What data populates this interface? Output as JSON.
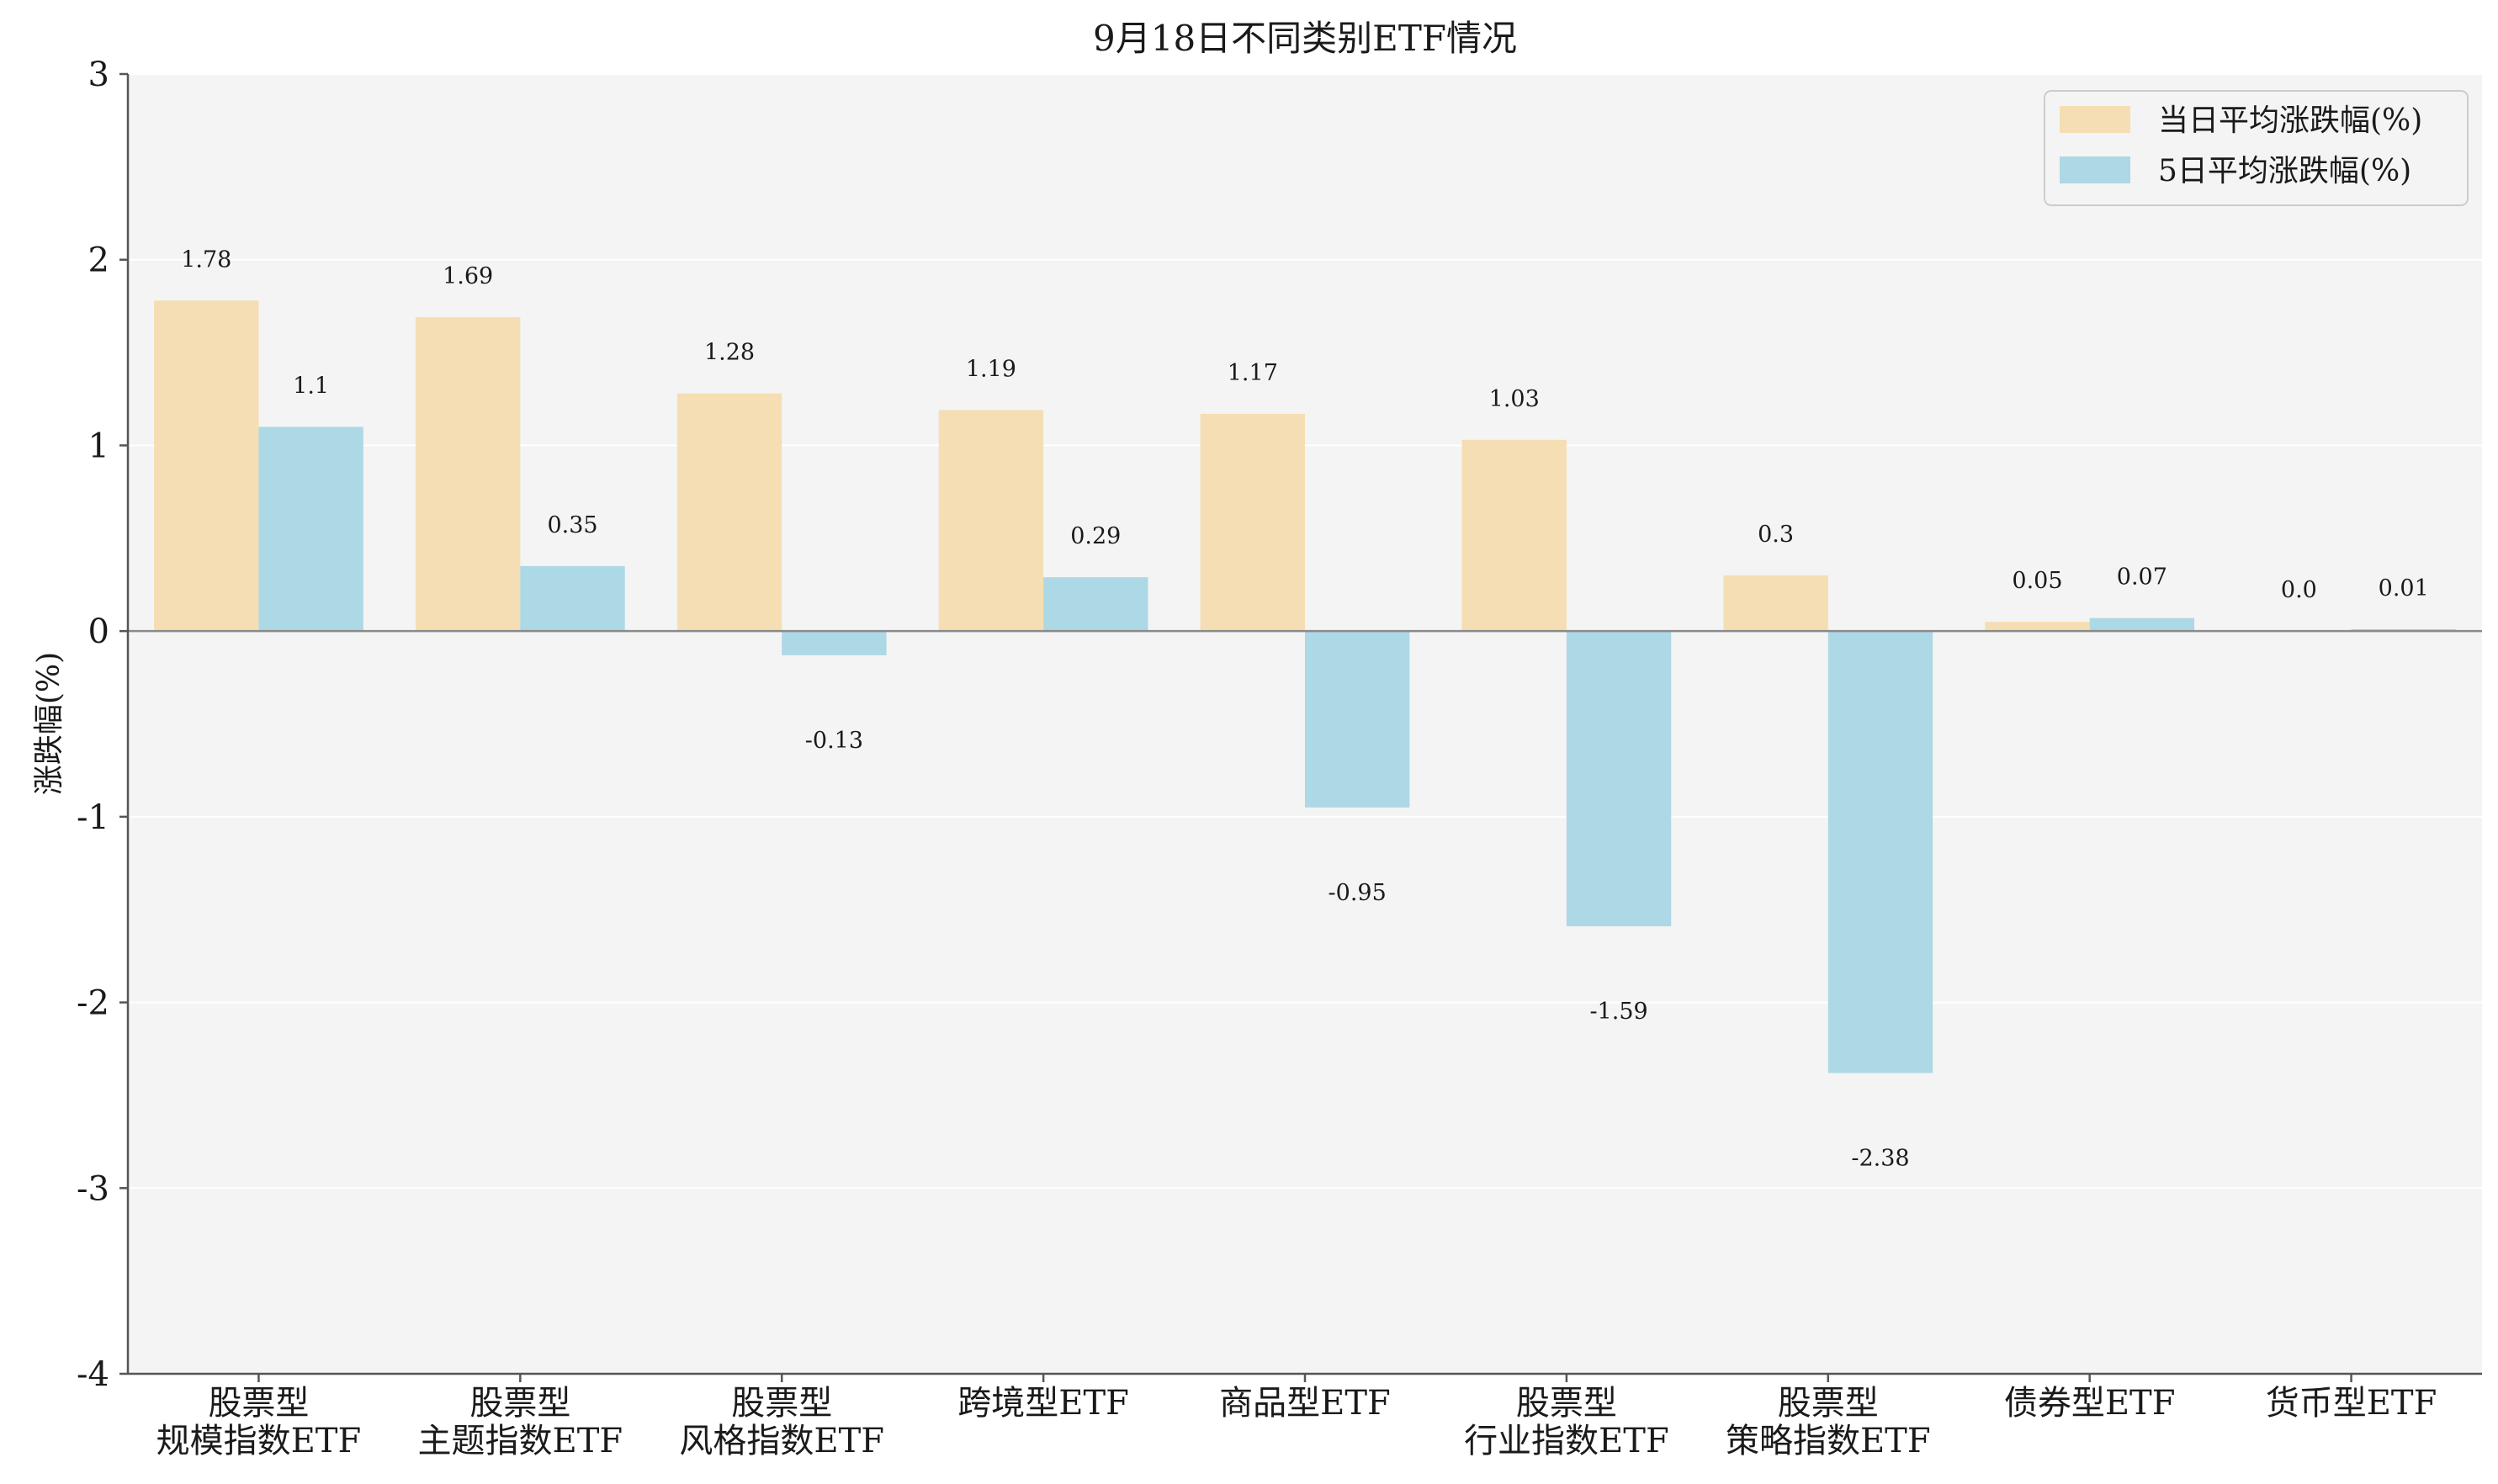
{
  "chart_data": {
    "type": "bar",
    "title": "9月18日不同类别ETF情况",
    "ylabel": "涨跌幅(%)",
    "xlabel": "",
    "ylim": [
      -4,
      3
    ],
    "yticks": [
      3,
      2,
      1,
      0,
      -1,
      -2,
      -3,
      -4
    ],
    "grid": true,
    "legend_position": "top-right",
    "categories": [
      [
        "股票型",
        "规模指数ETF"
      ],
      [
        "股票型",
        "主题指数ETF"
      ],
      [
        "股票型",
        "风格指数ETF"
      ],
      [
        "跨境型ETF"
      ],
      [
        "商品型ETF"
      ],
      [
        "股票型",
        "行业指数ETF"
      ],
      [
        "股票型",
        "策略指数ETF"
      ],
      [
        "债券型ETF"
      ],
      [
        "货币型ETF"
      ]
    ],
    "series": [
      {
        "name": "当日平均涨跌幅(%)",
        "color": "#f5deb3",
        "values": [
          1.78,
          1.69,
          1.28,
          1.19,
          1.17,
          1.03,
          0.3,
          0.05,
          0.0
        ],
        "labels": [
          "1.78",
          "1.69",
          "1.28",
          "1.19",
          "1.17",
          "1.03",
          "0.3",
          "0.05",
          "0.0"
        ]
      },
      {
        "name": "5日平均涨跌幅(%)",
        "color": "#add8e6",
        "values": [
          1.1,
          0.35,
          -0.13,
          0.29,
          -0.95,
          -1.59,
          -2.38,
          0.07,
          0.01
        ],
        "labels": [
          "1.1",
          "0.35",
          "-0.13",
          "0.29",
          "-0.95",
          "-1.59",
          "-2.38",
          "0.07",
          "0.01"
        ]
      }
    ]
  }
}
